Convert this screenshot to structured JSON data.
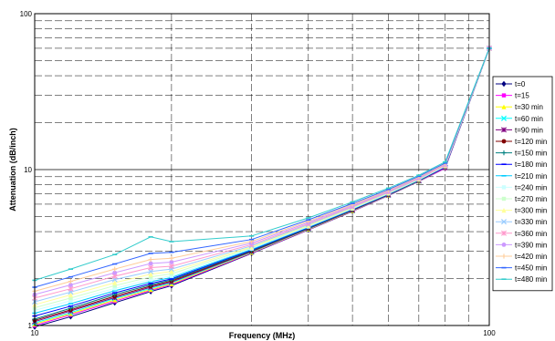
{
  "chart_data": {
    "type": "line",
    "title": "",
    "xlabel": "Frequency (MHz)",
    "ylabel": "Attenuation (dB/inch)",
    "x_scale": "log",
    "y_scale": "log",
    "xlim": [
      10,
      100
    ],
    "ylim": [
      1,
      100
    ],
    "x_ticks": [
      "10",
      "100"
    ],
    "y_ticks": [
      "1",
      "10",
      "100"
    ],
    "grid": true,
    "legend_position": "right",
    "series": [
      {
        "name": "t=0",
        "color": "#000080",
        "marker": "diamond",
        "x": [
          10,
          12,
          15,
          18,
          20,
          30,
          40,
          50,
          60,
          70,
          80,
          100
        ],
        "y": [
          0.98,
          1.14,
          1.4,
          1.65,
          1.8,
          2.9,
          4.1,
          5.4,
          6.8,
          8.4,
          10.2,
          60
        ]
      },
      {
        "name": "t=15",
        "color": "#ff00ff",
        "marker": "square",
        "x": [
          10,
          12,
          15,
          18,
          20,
          30,
          40,
          50,
          60,
          70,
          80,
          100
        ],
        "y": [
          1.0,
          1.17,
          1.43,
          1.68,
          1.83,
          2.92,
          4.12,
          5.42,
          6.82,
          8.42,
          10.2,
          60
        ]
      },
      {
        "name": "t=30 min",
        "color": "#ffff00",
        "marker": "triangle",
        "x": [
          10,
          12,
          15,
          18,
          20,
          30,
          40,
          50,
          60,
          70,
          80,
          100
        ],
        "y": [
          1.02,
          1.19,
          1.46,
          1.7,
          1.85,
          2.94,
          4.14,
          5.44,
          6.84,
          8.44,
          10.3,
          60
        ]
      },
      {
        "name": "t=60 min",
        "color": "#00ffff",
        "marker": "x",
        "x": [
          10,
          12,
          15,
          18,
          20,
          30,
          40,
          50,
          60,
          70,
          80,
          100
        ],
        "y": [
          1.04,
          1.21,
          1.49,
          1.73,
          1.88,
          2.96,
          4.16,
          5.46,
          6.86,
          8.46,
          10.3,
          60
        ]
      },
      {
        "name": "t=90 min",
        "color": "#800080",
        "marker": "star",
        "x": [
          10,
          12,
          15,
          18,
          20,
          30,
          40,
          50,
          60,
          70,
          80,
          100
        ],
        "y": [
          1.06,
          1.24,
          1.51,
          1.76,
          1.9,
          2.98,
          4.18,
          5.48,
          6.88,
          8.48,
          10.3,
          60
        ]
      },
      {
        "name": "t=120 min",
        "color": "#800000",
        "marker": "circle",
        "x": [
          10,
          12,
          15,
          18,
          20,
          30,
          40,
          50,
          60,
          70,
          80,
          100
        ],
        "y": [
          1.08,
          1.26,
          1.54,
          1.79,
          1.93,
          3.0,
          4.2,
          5.5,
          6.9,
          8.5,
          10.4,
          60
        ]
      },
      {
        "name": "t=150 min",
        "color": "#008080",
        "marker": "plus",
        "x": [
          10,
          12,
          15,
          18,
          20,
          30,
          40,
          50,
          60,
          70,
          80,
          100
        ],
        "y": [
          1.1,
          1.29,
          1.58,
          1.82,
          1.96,
          3.02,
          4.22,
          5.52,
          6.92,
          8.52,
          10.4,
          60
        ]
      },
      {
        "name": "t=180 min",
        "color": "#0000ff",
        "marker": "dash",
        "x": [
          10,
          12,
          15,
          18,
          20,
          30,
          40,
          50,
          60,
          70,
          80,
          100
        ],
        "y": [
          1.15,
          1.33,
          1.62,
          1.86,
          1.99,
          3.05,
          4.25,
          5.55,
          6.95,
          8.55,
          10.4,
          60
        ]
      },
      {
        "name": "t=210 min",
        "color": "#00ccff",
        "marker": "dash",
        "x": [
          10,
          12,
          15,
          18,
          20,
          30,
          40,
          50,
          60,
          70,
          80,
          100
        ],
        "y": [
          1.2,
          1.38,
          1.67,
          1.91,
          2.03,
          3.08,
          4.28,
          5.58,
          6.98,
          8.58,
          10.5,
          60
        ]
      },
      {
        "name": "t=240 min",
        "color": "#ccffff",
        "marker": "square",
        "x": [
          10,
          12,
          15,
          18,
          20,
          30,
          40,
          50,
          60,
          70,
          80,
          100
        ],
        "y": [
          1.25,
          1.44,
          1.73,
          1.97,
          2.08,
          3.11,
          4.31,
          5.61,
          7.01,
          8.61,
          10.5,
          60
        ]
      },
      {
        "name": "t=270 min",
        "color": "#ccffcc",
        "marker": "square",
        "x": [
          10,
          12,
          15,
          18,
          20,
          30,
          40,
          50,
          60,
          70,
          80,
          100
        ],
        "y": [
          1.3,
          1.5,
          1.8,
          2.05,
          2.15,
          3.15,
          4.35,
          5.65,
          7.05,
          8.65,
          10.6,
          60
        ]
      },
      {
        "name": "t=300 min",
        "color": "#ffff99",
        "marker": "triangle",
        "x": [
          10,
          12,
          15,
          18,
          20,
          30,
          40,
          50,
          60,
          70,
          80,
          100
        ],
        "y": [
          1.36,
          1.57,
          1.88,
          2.13,
          2.22,
          3.19,
          4.39,
          5.69,
          7.09,
          8.69,
          10.6,
          60
        ]
      },
      {
        "name": "t=330 min",
        "color": "#99ccff",
        "marker": "x",
        "x": [
          10,
          12,
          15,
          18,
          20,
          30,
          40,
          50,
          60,
          70,
          80,
          100
        ],
        "y": [
          1.42,
          1.64,
          1.97,
          2.22,
          2.3,
          3.24,
          4.44,
          5.74,
          7.14,
          8.74,
          10.7,
          60
        ]
      },
      {
        "name": "t=360 min",
        "color": "#ff99cc",
        "marker": "star",
        "x": [
          10,
          12,
          15,
          18,
          20,
          30,
          40,
          50,
          60,
          70,
          80,
          100
        ],
        "y": [
          1.5,
          1.72,
          2.07,
          2.35,
          2.4,
          3.3,
          4.5,
          5.8,
          7.2,
          8.8,
          10.7,
          60
        ]
      },
      {
        "name": "t=390 min",
        "color": "#cc99ff",
        "marker": "circle",
        "x": [
          10,
          12,
          15,
          18,
          20,
          30,
          40,
          50,
          60,
          70,
          80,
          100
        ],
        "y": [
          1.58,
          1.82,
          2.18,
          2.5,
          2.55,
          3.38,
          4.58,
          5.88,
          7.28,
          8.88,
          10.8,
          60
        ]
      },
      {
        "name": "t=420 min",
        "color": "#ffcc99",
        "marker": "plus",
        "x": [
          10,
          12,
          15,
          18,
          20,
          30,
          40,
          50,
          60,
          70,
          80,
          100
        ],
        "y": [
          1.66,
          1.92,
          2.3,
          2.65,
          2.7,
          3.46,
          4.66,
          5.96,
          7.36,
          8.96,
          10.9,
          60
        ]
      },
      {
        "name": "t=450 min",
        "color": "#3366ff",
        "marker": "dash",
        "x": [
          10,
          12,
          15,
          18,
          20,
          30,
          40,
          50,
          60,
          70,
          80,
          100
        ],
        "y": [
          1.76,
          2.05,
          2.48,
          2.9,
          2.95,
          3.56,
          4.76,
          6.06,
          7.46,
          9.06,
          11.0,
          60
        ]
      },
      {
        "name": "t=480 min",
        "color": "#33cccc",
        "marker": "dash",
        "x": [
          10,
          12,
          15,
          18,
          20,
          30,
          40,
          50,
          60,
          70,
          80,
          100
        ],
        "y": [
          1.95,
          2.3,
          2.85,
          3.7,
          3.45,
          3.75,
          4.9,
          6.2,
          7.6,
          9.2,
          11.2,
          60
        ]
      }
    ]
  }
}
